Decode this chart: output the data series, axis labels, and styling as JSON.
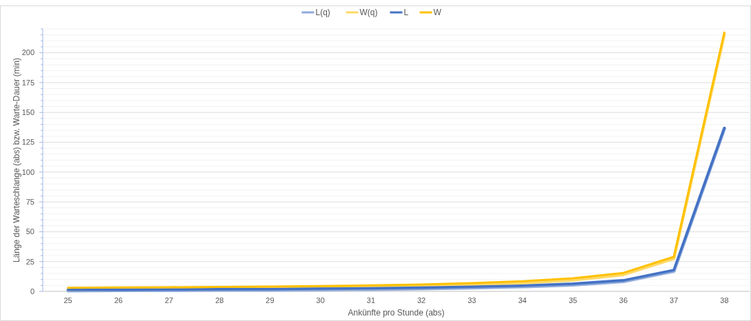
{
  "chart_data": {
    "type": "line",
    "xlabel": "Ankünfte pro Stunde (abs)",
    "ylabel": "Länge der Warteschlange (abs) bzw. Warte-Dauer (min)",
    "categories": [
      "25",
      "26",
      "27",
      "28",
      "29",
      "30",
      "31",
      "32",
      "33",
      "34",
      "35",
      "36",
      "37",
      "38"
    ],
    "series": [
      {
        "name": "L(q)",
        "color": "#8faadc",
        "values": [
          0.6,
          0.8,
          0.9,
          1.1,
          1.2,
          1.5,
          1.8,
          2.3,
          3,
          4,
          5.5,
          8.4,
          17,
          136.5
        ]
      },
      {
        "name": "W(q)",
        "color": "#ffd966",
        "values": [
          1.5,
          1.8,
          2,
          2.3,
          2.5,
          3,
          3.5,
          4.3,
          5.5,
          7,
          9.5,
          14,
          27.5,
          215.5
        ]
      },
      {
        "name": "L",
        "color": "#4472c4",
        "values": [
          1.3,
          1.4,
          1.6,
          1.8,
          1.9,
          2.3,
          2.6,
          3.1,
          3.9,
          4.8,
          6.4,
          9.3,
          17.9,
          137
        ]
      },
      {
        "name": "W",
        "color": "#ffc000",
        "values": [
          3,
          3.3,
          3.5,
          3.8,
          4,
          4.5,
          5,
          5.8,
          7,
          8.5,
          11,
          15.5,
          29,
          217
        ]
      }
    ],
    "ylim": [
      0,
      220
    ],
    "yticks": [
      0,
      {
        "value": 5,
        "label": null
      },
      {
        "value": 10,
        "label": null
      },
      {
        "value": 15,
        "label": null
      },
      {
        "value": 20,
        "label": null
      },
      25,
      {
        "value": 30,
        "label": null
      },
      {
        "value": 35,
        "label": null
      },
      {
        "value": 40,
        "label": null
      },
      {
        "value": 45,
        "label": null
      },
      50,
      {
        "value": 55,
        "label": null
      },
      {
        "value": 60,
        "label": null
      },
      {
        "value": 65,
        "label": null
      },
      {
        "value": 70,
        "label": null
      },
      75,
      {
        "value": 80,
        "label": null
      },
      {
        "value": 85,
        "label": null
      },
      {
        "value": 90,
        "label": null
      },
      {
        "value": 95,
        "label": null
      },
      100,
      {
        "value": 105,
        "label": null
      },
      {
        "value": 110,
        "label": null
      },
      {
        "value": 115,
        "label": null
      },
      {
        "value": 120,
        "label": null
      },
      125,
      {
        "value": 130,
        "label": null
      },
      {
        "value": 135,
        "label": null
      },
      {
        "value": 140,
        "label": null
      },
      {
        "value": 145,
        "label": null
      },
      150,
      {
        "value": 155,
        "label": null
      },
      {
        "value": 160,
        "label": null
      },
      {
        "value": 165,
        "label": null
      },
      {
        "value": 170,
        "label": null
      },
      175,
      {
        "value": 180,
        "label": null
      },
      {
        "value": 185,
        "label": null
      },
      {
        "value": 190,
        "label": null
      },
      {
        "value": 195,
        "label": null
      },
      200,
      {
        "value": 205,
        "label": null
      },
      {
        "value": 210,
        "label": null
      },
      {
        "value": 215,
        "label": null
      },
      {
        "value": 220,
        "label": null
      }
    ],
    "grid": true,
    "legend": "top",
    "marker": "none",
    "line_style": "solid"
  }
}
